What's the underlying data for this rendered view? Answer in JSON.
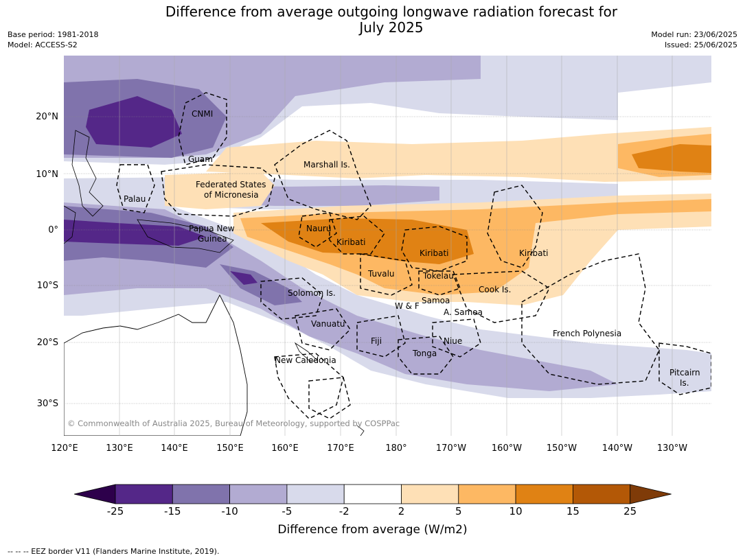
{
  "title_line1": "Difference from average outgoing longwave radiation forecast for",
  "title_line2": "July 2025",
  "base_period": "Base period: 1981-2018",
  "model": "Model: ACCESS-S2",
  "model_run": "Model run: 23/06/2025",
  "issued": "Issued: 25/06/2025",
  "copyright": "© Commonwealth of Australia 2025, Bureau of Meteorology, supported by COSPPac",
  "lat_labels": [
    "20°N",
    "10°N",
    "0°",
    "10°S",
    "20°S",
    "30°S"
  ],
  "lon_labels": [
    "120°E",
    "130°E",
    "140°E",
    "150°E",
    "160°E",
    "170°E",
    "180°",
    "170°W",
    "160°W",
    "150°W",
    "140°W",
    "130°W"
  ],
  "places": {
    "cnmi": "CNMI",
    "guam": "Guam",
    "marshall": "Marshall Is.",
    "fsm1": "Federated States",
    "fsm2": "of Micronesia",
    "palau": "Palau",
    "png1": "Papua New",
    "png2": "Guinea",
    "nauru": "Nauru",
    "kiribati_w": "Kiribati",
    "kiribati_c": "Kiribati",
    "kiribati_e": "Kiribati",
    "tuvalu": "Tuvalu",
    "tokelau": "Tokelau",
    "cook": "Cook Is.",
    "solomon": "Solomon Is.",
    "samoa": "Samoa",
    "wf": "W & F",
    "asamoa": "A. Samoa",
    "vanuatu": "Vanuatu",
    "fiji": "Fiji",
    "niue": "Niue",
    "tonga": "Tonga",
    "frpoly": "French Polynesia",
    "newcal": "New Caledonia",
    "pitcairn1": "Pitcairn",
    "pitcairn2": "Is."
  },
  "colorbar": {
    "tick_labels": [
      "-25",
      "-15",
      "-10",
      "-5",
      "-2",
      "2",
      "5",
      "10",
      "15",
      "25"
    ],
    "colors": [
      "#2d004b",
      "#542788",
      "#8073ac",
      "#b2abd2",
      "#d8daeb",
      "#ffffff",
      "#fee0b6",
      "#fdb863",
      "#e08214",
      "#b35806",
      "#7f3b08"
    ],
    "title": "Difference from average (W/m2)"
  },
  "footnote": "-- -- -- EEZ border V11 (Flanders Marine Institute, 2019)."
}
